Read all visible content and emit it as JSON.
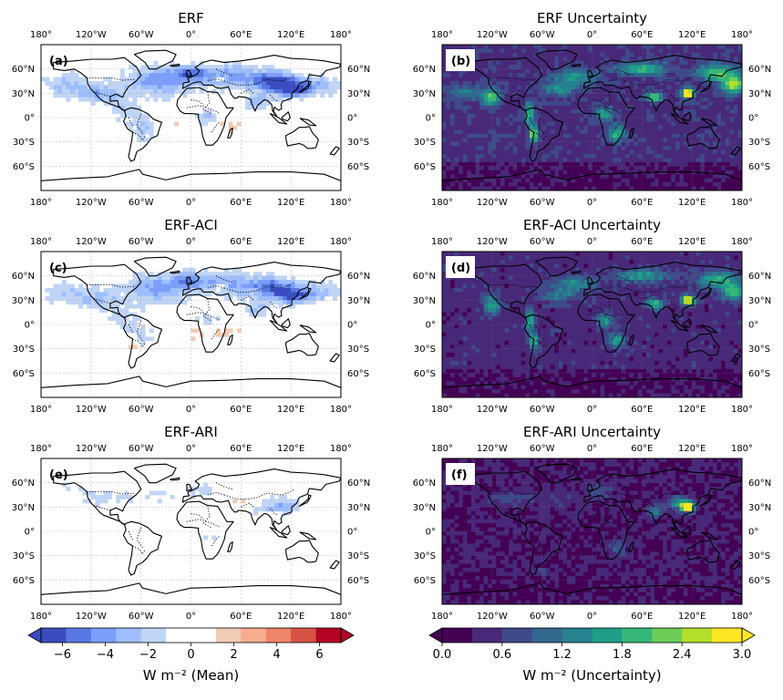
{
  "chart_data": {
    "type": "heatmap",
    "panels": [
      {
        "id": "a",
        "label": "(a)",
        "title": "ERF",
        "kind": "mean"
      },
      {
        "id": "b",
        "label": "(b)",
        "title": "ERF Uncertainty",
        "kind": "uncertainty"
      },
      {
        "id": "c",
        "label": "(c)",
        "title": "ERF-ACI",
        "kind": "mean"
      },
      {
        "id": "d",
        "label": "(d)",
        "title": "ERF-ACI Uncertainty",
        "kind": "uncertainty"
      },
      {
        "id": "e",
        "label": "(e)",
        "title": "ERF-ARI",
        "kind": "mean"
      },
      {
        "id": "f",
        "label": "(f)",
        "title": "ERF-ARI Uncertainty",
        "kind": "uncertainty"
      }
    ],
    "lon_ticks": [
      {
        "value": -180,
        "label": "180°"
      },
      {
        "value": -120,
        "label": "120°W"
      },
      {
        "value": -60,
        "label": "60°W"
      },
      {
        "value": 0,
        "label": "0°"
      },
      {
        "value": 60,
        "label": "60°E"
      },
      {
        "value": 120,
        "label": "120°E"
      },
      {
        "value": 180,
        "label": "180°"
      }
    ],
    "lat_ticks": [
      {
        "value": 60,
        "label": "60°N"
      },
      {
        "value": 30,
        "label": "30°N"
      },
      {
        "value": 0,
        "label": "0°"
      },
      {
        "value": -30,
        "label": "30°S"
      },
      {
        "value": -60,
        "label": "60°S"
      }
    ],
    "lon_range": [
      -180,
      180
    ],
    "lat_range": [
      -90,
      90
    ],
    "colorbars": {
      "mean": {
        "label": "W m⁻² (Mean)",
        "range": [
          -7,
          7
        ],
        "colors": [
          "#3a4cc0",
          "#5977e3",
          "#7b9ff9",
          "#9ebeff",
          "#c0d4f5",
          "#ffffff",
          "#ffffff",
          "#f2cbb7",
          "#f7ac8e",
          "#ee8468",
          "#d65244",
          "#b40426"
        ],
        "extend_colors": [
          "#3a4cc0",
          "#b40426"
        ],
        "ticks": [
          {
            "value": -6,
            "label": "−6"
          },
          {
            "value": -4,
            "label": "−4"
          },
          {
            "value": -2,
            "label": "−2"
          },
          {
            "value": 0,
            "label": "0"
          },
          {
            "value": 2,
            "label": "2"
          },
          {
            "value": 4,
            "label": "4"
          },
          {
            "value": 6,
            "label": "6"
          }
        ]
      },
      "uncertainty": {
        "label": "W m⁻² (Uncertainty)",
        "range": [
          0,
          3
        ],
        "colors": [
          "#440154",
          "#482979",
          "#3e4a89",
          "#31688e",
          "#26828e",
          "#1f9e89",
          "#35b779",
          "#6dcd59",
          "#b4de2c",
          "#fde725"
        ],
        "extend_colors": [
          "#440154",
          "#fde725"
        ],
        "ticks": [
          {
            "value": 0,
            "label": "0.0"
          },
          {
            "value": 0.6,
            "label": "0.6"
          },
          {
            "value": 1.2,
            "label": "1.2"
          },
          {
            "value": 1.8,
            "label": "1.8"
          },
          {
            "value": 2.4,
            "label": "2.4"
          },
          {
            "value": 3.0,
            "label": "3.0"
          }
        ]
      }
    }
  }
}
